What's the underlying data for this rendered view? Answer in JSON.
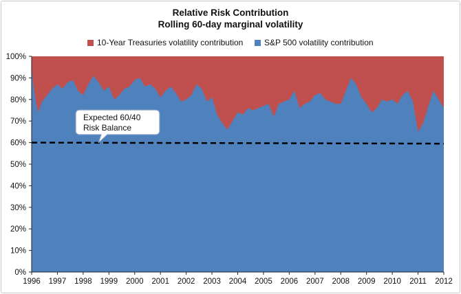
{
  "chart_data": {
    "type": "area",
    "title": "Relative Risk Contribution",
    "subtitle": "Rolling 60-day marginal volatility",
    "xlabel": "",
    "ylabel": "",
    "xlim": [
      1996,
      2012
    ],
    "ylim": [
      0,
      100
    ],
    "yticks": [
      "0%",
      "10%",
      "20%",
      "30%",
      "40%",
      "50%",
      "60%",
      "70%",
      "80%",
      "90%",
      "100%"
    ],
    "xticks": [
      "1996",
      "1997",
      "1998",
      "1999",
      "2000",
      "2001",
      "2002",
      "2003",
      "2004",
      "2005",
      "2006",
      "2007",
      "2008",
      "2009",
      "2010",
      "2011",
      "2012"
    ],
    "legend_position": "top",
    "series": [
      {
        "name": "10-Year Treasuries volatility contribution",
        "color": "#c0504d",
        "note": "fills the remainder up to 100%"
      },
      {
        "name": "S&P 500 volatility contribution",
        "color": "#4f81bd",
        "x": [
          1996.0,
          1996.08,
          1996.15,
          1996.25,
          1996.4,
          1996.6,
          1996.8,
          1997.0,
          1997.2,
          1997.4,
          1997.6,
          1997.8,
          1998.0,
          1998.2,
          1998.4,
          1998.6,
          1998.8,
          1999.0,
          1999.2,
          1999.4,
          1999.6,
          1999.8,
          2000.0,
          2000.2,
          2000.4,
          2000.6,
          2000.8,
          2001.0,
          2001.2,
          2001.4,
          2001.6,
          2001.8,
          2002.0,
          2002.2,
          2002.4,
          2002.6,
          2002.8,
          2003.0,
          2003.2,
          2003.4,
          2003.6,
          2003.8,
          2004.0,
          2004.2,
          2004.4,
          2004.6,
          2004.8,
          2005.0,
          2005.2,
          2005.4,
          2005.6,
          2005.8,
          2006.0,
          2006.2,
          2006.4,
          2006.6,
          2006.8,
          2007.0,
          2007.2,
          2007.4,
          2007.6,
          2007.8,
          2008.0,
          2008.2,
          2008.4,
          2008.6,
          2008.8,
          2009.0,
          2009.2,
          2009.4,
          2009.6,
          2009.8,
          2010.0,
          2010.2,
          2010.4,
          2010.6,
          2010.8,
          2011.0,
          2011.2,
          2011.4,
          2011.6,
          2011.8,
          2012.0
        ],
        "values": [
          95,
          86,
          80,
          74,
          79,
          82,
          85,
          87,
          85,
          88,
          89,
          84,
          82,
          87,
          91,
          88,
          84,
          86,
          80,
          82,
          85,
          86,
          89,
          90,
          86,
          87,
          85,
          81,
          84,
          86,
          83,
          79,
          80,
          82,
          87,
          85,
          79,
          81,
          73,
          69,
          66,
          70,
          74,
          73,
          76,
          75,
          76,
          77,
          78,
          72,
          78,
          79,
          80,
          84,
          76,
          78,
          79,
          82,
          83,
          80,
          79,
          78,
          78,
          84,
          90,
          87,
          81,
          78,
          74,
          76,
          80,
          79,
          80,
          78,
          82,
          84,
          79,
          65,
          69,
          77,
          84,
          80,
          76
        ]
      }
    ],
    "reference_line": {
      "value": 60,
      "style": "dashed",
      "label": "Expected 60/40 Risk Balance"
    },
    "annotations": [
      "Expected 60/40",
      "Risk Balance"
    ]
  }
}
